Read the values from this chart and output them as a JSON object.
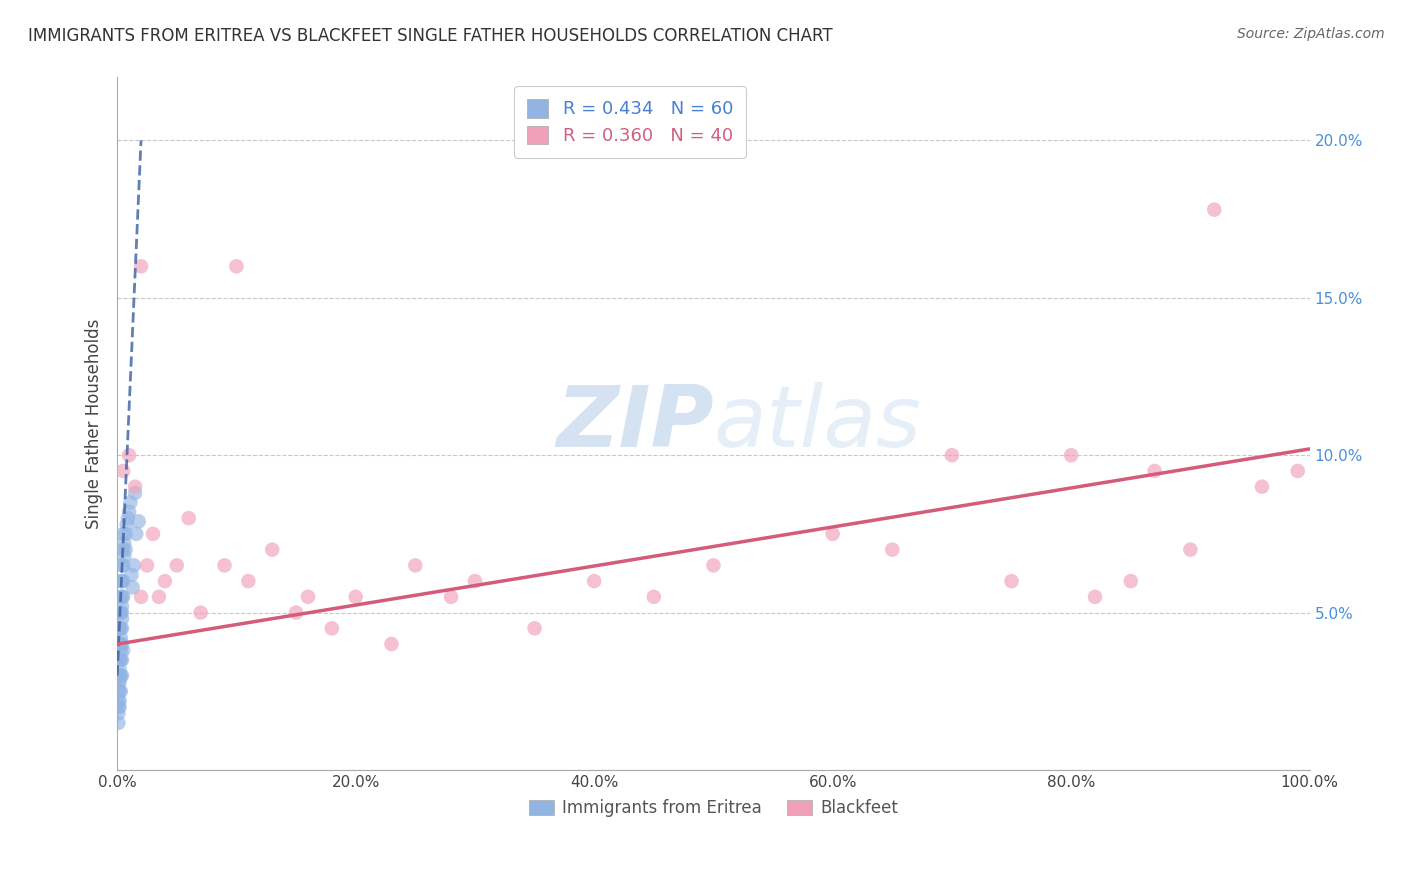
{
  "title": "IMMIGRANTS FROM ERITREA VS BLACKFEET SINGLE FATHER HOUSEHOLDS CORRELATION CHART",
  "source": "Source: ZipAtlas.com",
  "ylabel": "Single Father Households",
  "xlim": [
    0,
    1.0
  ],
  "ylim": [
    0,
    0.22
  ],
  "xticks": [
    0.0,
    0.2,
    0.4,
    0.6,
    0.8,
    1.0
  ],
  "xticklabels": [
    "0.0%",
    "20.0%",
    "40.0%",
    "60.0%",
    "80.0%",
    "100.0%"
  ],
  "yticks": [
    0.0,
    0.05,
    0.1,
    0.15,
    0.2
  ],
  "yticklabels": [
    "",
    "5.0%",
    "10.0%",
    "15.0%",
    "20.0%"
  ],
  "blue_R": 0.434,
  "blue_N": 60,
  "pink_R": 0.36,
  "pink_N": 40,
  "blue_color": "#92b4e3",
  "pink_color": "#f0a0b8",
  "blue_line_color": "#3a5fa0",
  "pink_line_color": "#d45c7a",
  "watermark_zip": "ZIP",
  "watermark_atlas": "atlas",
  "blue_scatter_x": [
    0.001,
    0.001,
    0.001,
    0.001,
    0.001,
    0.001,
    0.001,
    0.001,
    0.001,
    0.001,
    0.002,
    0.002,
    0.002,
    0.002,
    0.002,
    0.002,
    0.002,
    0.002,
    0.002,
    0.002,
    0.003,
    0.003,
    0.003,
    0.003,
    0.003,
    0.003,
    0.003,
    0.003,
    0.003,
    0.003,
    0.004,
    0.004,
    0.004,
    0.004,
    0.004,
    0.004,
    0.004,
    0.004,
    0.004,
    0.004,
    0.005,
    0.005,
    0.005,
    0.005,
    0.005,
    0.005,
    0.006,
    0.006,
    0.007,
    0.007,
    0.008,
    0.009,
    0.01,
    0.011,
    0.012,
    0.013,
    0.014,
    0.015,
    0.016,
    0.018
  ],
  "blue_scatter_y": [
    0.025,
    0.03,
    0.035,
    0.04,
    0.045,
    0.02,
    0.015,
    0.018,
    0.022,
    0.028,
    0.03,
    0.035,
    0.04,
    0.045,
    0.05,
    0.025,
    0.02,
    0.022,
    0.028,
    0.032,
    0.04,
    0.045,
    0.05,
    0.055,
    0.06,
    0.035,
    0.03,
    0.025,
    0.038,
    0.042,
    0.045,
    0.05,
    0.055,
    0.06,
    0.065,
    0.04,
    0.035,
    0.03,
    0.048,
    0.052,
    0.055,
    0.06,
    0.065,
    0.07,
    0.075,
    0.038,
    0.068,
    0.072,
    0.07,
    0.075,
    0.078,
    0.08,
    0.082,
    0.085,
    0.062,
    0.058,
    0.065,
    0.088,
    0.075,
    0.079
  ],
  "pink_scatter_x": [
    0.005,
    0.01,
    0.015,
    0.02,
    0.02,
    0.025,
    0.03,
    0.035,
    0.04,
    0.05,
    0.06,
    0.07,
    0.09,
    0.1,
    0.11,
    0.13,
    0.15,
    0.16,
    0.18,
    0.2,
    0.23,
    0.25,
    0.28,
    0.3,
    0.35,
    0.4,
    0.45,
    0.5,
    0.6,
    0.65,
    0.7,
    0.75,
    0.8,
    0.82,
    0.85,
    0.87,
    0.9,
    0.92,
    0.96,
    0.99
  ],
  "pink_scatter_y": [
    0.095,
    0.1,
    0.09,
    0.16,
    0.055,
    0.065,
    0.075,
    0.055,
    0.06,
    0.065,
    0.08,
    0.05,
    0.065,
    0.16,
    0.06,
    0.07,
    0.05,
    0.055,
    0.045,
    0.055,
    0.04,
    0.065,
    0.055,
    0.06,
    0.045,
    0.06,
    0.055,
    0.065,
    0.075,
    0.07,
    0.1,
    0.06,
    0.1,
    0.055,
    0.06,
    0.095,
    0.07,
    0.178,
    0.09,
    0.095
  ],
  "blue_line_x0": 0.0,
  "blue_line_y0": 0.03,
  "blue_line_x1": 0.02,
  "blue_line_y1": 0.2,
  "pink_line_x0": 0.0,
  "pink_line_y0": 0.04,
  "pink_line_x1": 1.0,
  "pink_line_y1": 0.102
}
